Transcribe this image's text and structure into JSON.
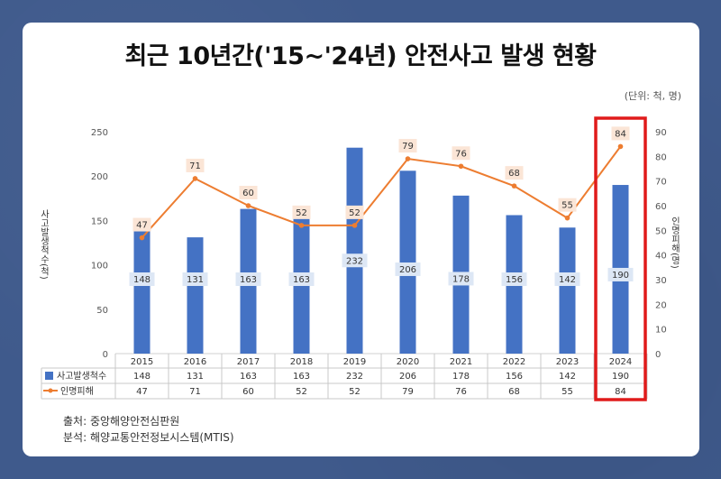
{
  "title": "최근 10년간('15~'24년) 안전사고 발생 현황",
  "unit": "(단위: 척, 명)",
  "source1": "출처: 중앙해양안전심판원",
  "source2": "분석: 해양교통안전정보시스템(MTIS)",
  "colors": {
    "bar": "#4472c4",
    "line": "#ed7d31",
    "highlight": "#e01b1b",
    "label_bg": "#fbe5d6",
    "bar_label_bg": "#dde7f5"
  },
  "chart_data": {
    "type": "bar",
    "categories": [
      "2015",
      "2016",
      "2017",
      "2018",
      "2019",
      "2020",
      "2021",
      "2022",
      "2023",
      "2024"
    ],
    "series": [
      {
        "name": "사고발생척수",
        "type": "bar",
        "axis": "left",
        "values": [
          148,
          131,
          163,
          163,
          232,
          206,
          178,
          156,
          142,
          190
        ]
      },
      {
        "name": "인명피해",
        "type": "line",
        "axis": "right",
        "values": [
          47,
          71,
          60,
          52,
          52,
          79,
          76,
          68,
          55,
          84
        ]
      }
    ],
    "ylabel": "사고발생척수(척)",
    "y2label": "인명피해(명)",
    "ylim": [
      0,
      250
    ],
    "y2lim": [
      0,
      90
    ],
    "yticks": [
      0,
      50,
      100,
      150,
      200,
      250
    ],
    "y2ticks": [
      0,
      10,
      20,
      30,
      40,
      50,
      60,
      70,
      80,
      90
    ],
    "highlight_category": "2024",
    "legend": "table"
  }
}
